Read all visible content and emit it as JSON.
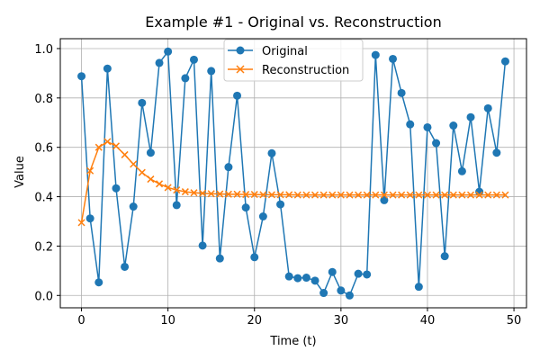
{
  "chart_data": {
    "type": "line",
    "title": "Example #1 - Original vs. Reconstruction",
    "xlabel": "Time (t)",
    "ylabel": "Value",
    "xlim": [
      -2.45,
      51.45
    ],
    "ylim": [
      -0.05,
      1.04
    ],
    "xticks": [
      0,
      10,
      20,
      30,
      40,
      50
    ],
    "xtick_labels": [
      "0",
      "10",
      "20",
      "30",
      "40",
      "50"
    ],
    "yticks": [
      0.0,
      0.2,
      0.4,
      0.6,
      0.8,
      1.0
    ],
    "ytick_labels": [
      "0.0",
      "0.2",
      "0.4",
      "0.6",
      "0.8",
      "1.0"
    ],
    "grid": true,
    "legend_position": "upper center",
    "x": [
      0,
      1,
      2,
      3,
      4,
      5,
      6,
      7,
      8,
      9,
      10,
      11,
      12,
      13,
      14,
      15,
      16,
      17,
      18,
      19,
      20,
      21,
      22,
      23,
      24,
      25,
      26,
      27,
      28,
      29,
      30,
      31,
      32,
      33,
      34,
      35,
      36,
      37,
      38,
      39,
      40,
      41,
      42,
      43,
      44,
      45,
      46,
      47,
      48,
      49
    ],
    "series": [
      {
        "name": "Original",
        "color": "#1f77b4",
        "marker": "circle",
        "values": [
          0.888,
          0.312,
          0.053,
          0.919,
          0.434,
          0.116,
          0.36,
          0.78,
          0.578,
          0.942,
          0.988,
          0.366,
          0.88,
          0.955,
          0.202,
          0.909,
          0.15,
          0.52,
          0.809,
          0.356,
          0.155,
          0.32,
          0.576,
          0.369,
          0.077,
          0.07,
          0.072,
          0.06,
          0.01,
          0.095,
          0.02,
          0.0,
          0.088,
          0.085,
          0.974,
          0.386,
          0.958,
          0.82,
          0.693,
          0.035,
          0.681,
          0.617,
          0.159,
          0.688,
          0.503,
          0.722,
          0.42,
          0.758,
          0.578,
          0.948
        ]
      },
      {
        "name": "Reconstruction",
        "color": "#ff7f0e",
        "marker": "x",
        "values": [
          0.295,
          0.505,
          0.6,
          0.623,
          0.605,
          0.57,
          0.532,
          0.498,
          0.471,
          0.452,
          0.437,
          0.427,
          0.42,
          0.416,
          0.414,
          0.412,
          0.411,
          0.41,
          0.41,
          0.409,
          0.409,
          0.408,
          0.408,
          0.408,
          0.408,
          0.407,
          0.407,
          0.407,
          0.407,
          0.407,
          0.407,
          0.407,
          0.407,
          0.407,
          0.407,
          0.407,
          0.407,
          0.407,
          0.407,
          0.407,
          0.407,
          0.407,
          0.407,
          0.407,
          0.407,
          0.407,
          0.407,
          0.407,
          0.407,
          0.407
        ]
      }
    ]
  }
}
